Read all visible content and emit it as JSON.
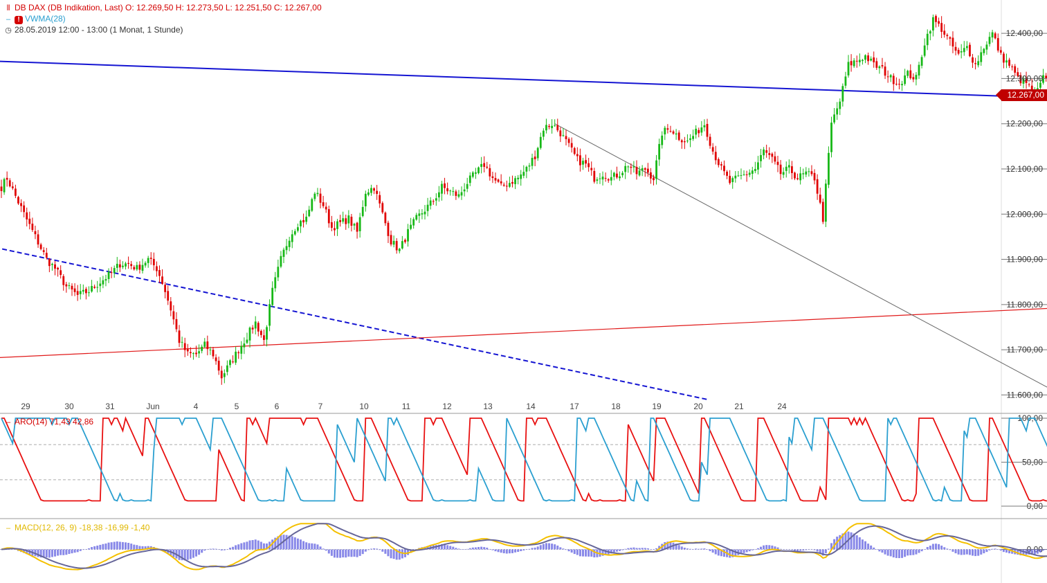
{
  "header": {
    "instrument_line": {
      "icon": "candlestick-icon",
      "text": "DB DAX (DB Indikation, Last)  O: 12.269,50  H: 12.273,50  L: 12.251,50  C: 12.267,00"
    },
    "indicator_line": {
      "icon": "warning-icon",
      "text": "VWMA(28)"
    },
    "time_line": {
      "icon": "clock-icon",
      "text": "28.05.2019 12:00 - 13:00   (1 Monat, 1 Stunde)"
    }
  },
  "price_tag": "12.267,00",
  "chart_data": [
    {
      "type": "candlestick",
      "instrument": "DB DAX (DB Indikation, Last)",
      "interval": "1 Stunde",
      "range": "1 Monat",
      "ohlc": {
        "open": "12.269,50",
        "high": "12.273,50",
        "low": "12.251,50",
        "close": "12.267,00"
      },
      "last_price": 12267,
      "ylim": [
        11570,
        12440
      ],
      "y_ticks": [
        12400,
        12300,
        12200,
        12100,
        12000,
        11900,
        11800,
        11700,
        11600
      ],
      "y_tick_labels": [
        "12.400,00",
        "12.300,00",
        "12.200,00",
        "12.100,00",
        "12.000,00",
        "11.900,00",
        "11.800,00",
        "11.700,00",
        "11.600,00"
      ],
      "x_tick_labels": [
        "29",
        "30",
        "31",
        "Jun",
        "4",
        "5",
        "6",
        "7",
        "10",
        "11",
        "12",
        "13",
        "14",
        "17",
        "18",
        "19",
        "20",
        "21",
        "24"
      ],
      "anchors": [
        [
          0,
          12060
        ],
        [
          2,
          12080
        ],
        [
          5,
          12040
        ],
        [
          8,
          12000
        ],
        [
          12,
          11950
        ],
        [
          16,
          11900
        ],
        [
          19,
          11880
        ],
        [
          23,
          11840
        ],
        [
          27,
          11820
        ],
        [
          31,
          11830
        ],
        [
          35,
          11850
        ],
        [
          39,
          11870
        ],
        [
          42,
          11890
        ],
        [
          45,
          11890
        ],
        [
          48,
          11880
        ],
        [
          52,
          11900
        ],
        [
          55,
          11880
        ],
        [
          57,
          11850
        ],
        [
          60,
          11790
        ],
        [
          63,
          11720
        ],
        [
          66,
          11690
        ],
        [
          69,
          11690
        ],
        [
          72,
          11710
        ],
        [
          75,
          11690
        ],
        [
          78,
          11640
        ],
        [
          81,
          11670
        ],
        [
          84,
          11700
        ],
        [
          87,
          11730
        ],
        [
          90,
          11760
        ],
        [
          93,
          11720
        ],
        [
          96,
          11830
        ],
        [
          99,
          11900
        ],
        [
          102,
          11950
        ],
        [
          105,
          11980
        ],
        [
          108,
          11990
        ],
        [
          111,
          12050
        ],
        [
          114,
          12020
        ],
        [
          117,
          11970
        ],
        [
          120,
          11980
        ],
        [
          123,
          11990
        ],
        [
          126,
          11960
        ],
        [
          129,
          12050
        ],
        [
          132,
          12060
        ],
        [
          135,
          12000
        ],
        [
          138,
          11940
        ],
        [
          141,
          11920
        ],
        [
          144,
          11960
        ],
        [
          147,
          11990
        ],
        [
          150,
          12010
        ],
        [
          153,
          12030
        ],
        [
          156,
          12060
        ],
        [
          159,
          12050
        ],
        [
          162,
          12040
        ],
        [
          165,
          12070
        ],
        [
          168,
          12090
        ],
        [
          171,
          12110
        ],
        [
          174,
          12080
        ],
        [
          177,
          12060
        ],
        [
          180,
          12070
        ],
        [
          183,
          12080
        ],
        [
          186,
          12100
        ],
        [
          189,
          12130
        ],
        [
          192,
          12190
        ],
        [
          195,
          12200
        ],
        [
          198,
          12180
        ],
        [
          201,
          12150
        ],
        [
          204,
          12120
        ],
        [
          207,
          12110
        ],
        [
          210,
          12080
        ],
        [
          213,
          12090
        ],
        [
          216,
          12080
        ],
        [
          219,
          12090
        ],
        [
          222,
          12110
        ],
        [
          225,
          12090
        ],
        [
          228,
          12100
        ],
        [
          231,
          12080
        ],
        [
          234,
          12180
        ],
        [
          237,
          12190
        ],
        [
          240,
          12170
        ],
        [
          243,
          12160
        ],
        [
          246,
          12180
        ],
        [
          249,
          12200
        ],
        [
          252,
          12140
        ],
        [
          255,
          12100
        ],
        [
          258,
          12070
        ],
        [
          261,
          12080
        ],
        [
          264,
          12090
        ],
        [
          267,
          12100
        ],
        [
          270,
          12140
        ],
        [
          273,
          12120
        ],
        [
          276,
          12090
        ],
        [
          279,
          12100
        ],
        [
          282,
          12080
        ],
        [
          285,
          12090
        ],
        [
          288,
          12080
        ],
        [
          291,
          11990
        ],
        [
          294,
          12200
        ],
        [
          297,
          12250
        ],
        [
          300,
          12330
        ],
        [
          303,
          12340
        ],
        [
          306,
          12350
        ],
        [
          309,
          12330
        ],
        [
          312,
          12320
        ],
        [
          315,
          12300
        ],
        [
          318,
          12290
        ],
        [
          321,
          12310
        ],
        [
          324,
          12300
        ],
        [
          327,
          12380
        ],
        [
          330,
          12430
        ],
        [
          333,
          12410
        ],
        [
          336,
          12380
        ],
        [
          339,
          12350
        ],
        [
          342,
          12370
        ],
        [
          345,
          12330
        ],
        [
          348,
          12370
        ],
        [
          351,
          12400
        ],
        [
          354,
          12350
        ],
        [
          357,
          12330
        ],
        [
          360,
          12300
        ],
        [
          363,
          12290
        ],
        [
          366,
          12260
        ],
        [
          369,
          12300
        ],
        [
          372,
          12280
        ],
        [
          375,
          12267
        ]
      ],
      "lines": [
        {
          "name": "horizontal-trendline",
          "color": "#1414d2",
          "style": "solid",
          "from": [
            -10,
            12340
          ],
          "to": [
            383,
            12255
          ]
        },
        {
          "name": "lower-dashed-trendline",
          "color": "#1414d2",
          "style": "dashed",
          "from": [
            -5,
            11930
          ],
          "to": [
            250,
            11590
          ]
        },
        {
          "name": "rising-support-line",
          "color": "#e01818",
          "style": "solid",
          "from": [
            -10,
            11680
          ],
          "to": [
            383,
            11795
          ]
        },
        {
          "name": "falling-thin-line",
          "color": "#666666",
          "style": "solid",
          "from": [
            196,
            12200
          ],
          "to": [
            383,
            11575
          ]
        }
      ]
    },
    {
      "type": "line",
      "name": "ARO(14)",
      "header_text": "ARO(14)  71,43  42,86",
      "values_shown": [
        "71,43",
        "42,86"
      ],
      "period": 14,
      "ylim": [
        -12,
        107
      ],
      "y_ticks": [
        100,
        50,
        0
      ],
      "y_tick_labels": [
        "100,00",
        "50,00",
        "0,00"
      ],
      "levels": [
        70,
        30
      ],
      "series": [
        {
          "color": "#e81010",
          "last": 71.43
        },
        {
          "color": "#2a9fd0",
          "last": 42.86
        }
      ]
    },
    {
      "type": "line",
      "name": "MACD(12, 26, 9)",
      "header_text": "MACD(12, 26, 9)  -18,38  -16,99  -1,40",
      "values_shown": [
        "-18,38",
        "-16,99",
        "-1,40"
      ],
      "ylim": [
        -60,
        60
      ],
      "y_ticks": [
        0
      ],
      "y_tick_labels": [
        "0,00"
      ],
      "series": [
        {
          "color": "#f4c000",
          "last": -18.38
        },
        {
          "color": "#666699",
          "last": -16.99
        },
        {
          "color": "#6060e0",
          "type": "histogram",
          "last": -1.4
        }
      ]
    }
  ]
}
